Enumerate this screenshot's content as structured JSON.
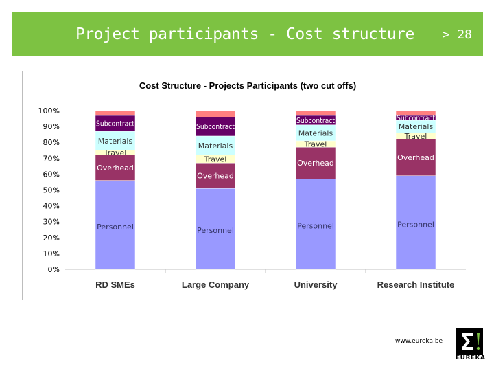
{
  "header": {
    "title": "Project participants - Cost structure",
    "page": "> 28",
    "bg_color": "#7dc242"
  },
  "chart_data": {
    "type": "bar",
    "stacked": true,
    "title": "Cost Structure - Projects Participants (two cut offs)",
    "categories": [
      "RD SMEs",
      "Large Company",
      "University",
      "Research Institute"
    ],
    "ylim": [
      0,
      100
    ],
    "yticks": [
      "0%",
      "10%",
      "20%",
      "30%",
      "40%",
      "50%",
      "60%",
      "70%",
      "80%",
      "90%",
      "100%"
    ],
    "series": [
      {
        "name": "Personnel",
        "color": "#9999ff",
        "values": [
          56,
          51,
          57,
          59
        ]
      },
      {
        "name": "Overhead",
        "color": "#993366",
        "values": [
          16,
          16,
          20,
          23
        ]
      },
      {
        "name": "Travel",
        "color": "#ffffcc",
        "values": [
          3,
          5,
          4,
          4
        ]
      },
      {
        "name": "Materials",
        "color": "#ccffff",
        "values": [
          12,
          12,
          10,
          8
        ]
      },
      {
        "name": "Subcontract",
        "color": "#660066",
        "values": [
          10,
          12,
          6,
          3
        ]
      },
      {
        "name": "",
        "color": "#ff8080",
        "values": [
          3,
          4,
          3,
          3
        ]
      }
    ],
    "grid": false,
    "legend": "none"
  },
  "footer": {
    "url": "www.eureka.be",
    "logo_text": "EUREKA"
  }
}
